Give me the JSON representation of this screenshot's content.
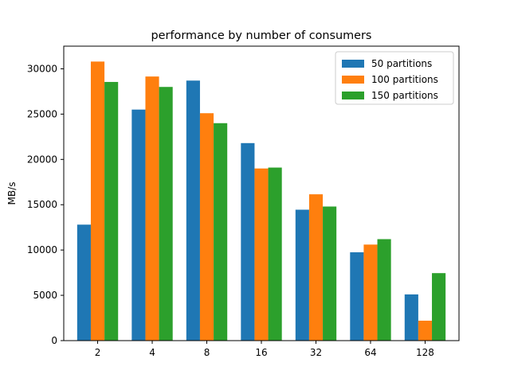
{
  "chart_data": {
    "type": "bar",
    "title": "performance by number of consumers",
    "xlabel": "",
    "ylabel": "MB/s",
    "categories": [
      "2",
      "4",
      "8",
      "16",
      "32",
      "64",
      "128"
    ],
    "series": [
      {
        "name": "50 partitions",
        "color": "#1f77b4",
        "values": [
          12800,
          25500,
          28700,
          21800,
          14450,
          9750,
          5100
        ]
      },
      {
        "name": "100 partitions",
        "color": "#ff7f0e",
        "values": [
          30800,
          29150,
          25100,
          19000,
          16150,
          10600,
          2200
        ]
      },
      {
        "name": "150 partitions",
        "color": "#2ca02c",
        "values": [
          28550,
          28000,
          24000,
          19100,
          14800,
          11200,
          7450
        ]
      }
    ],
    "ylim": [
      0,
      32500
    ],
    "yticks": [
      0,
      5000,
      10000,
      15000,
      20000,
      25000,
      30000
    ],
    "ytick_labels": [
      "0",
      "5000",
      "10000",
      "15000",
      "20000",
      "25000",
      "30000"
    ],
    "grid": false,
    "legend_position": "top-right"
  }
}
